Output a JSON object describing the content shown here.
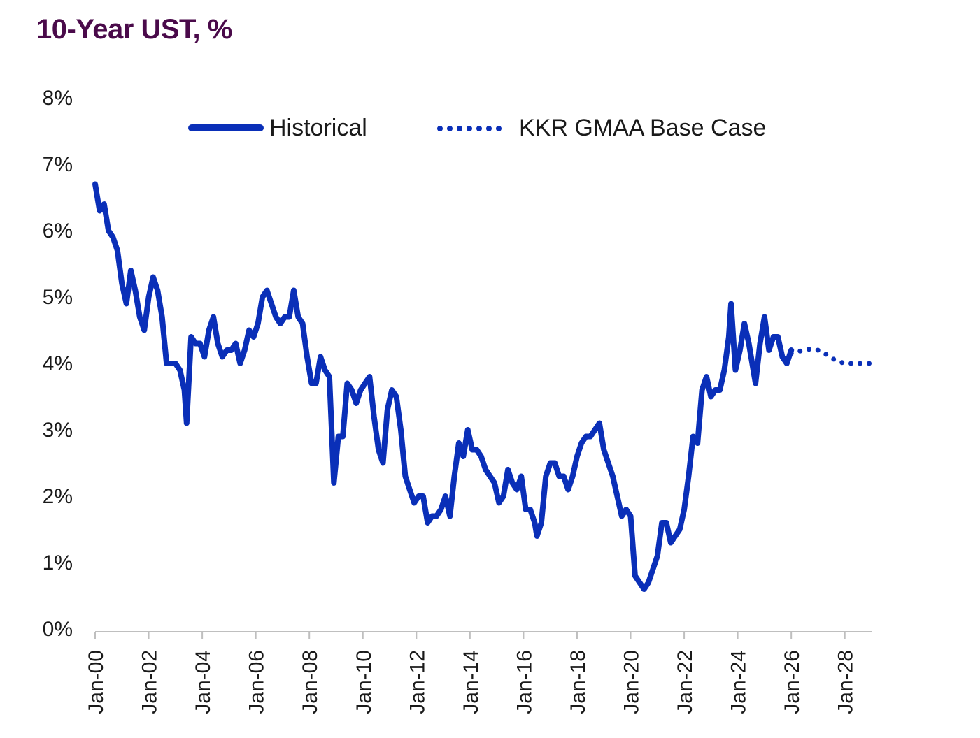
{
  "chart_data": {
    "type": "line",
    "title": "10-Year UST, %",
    "xlabel": "",
    "ylabel": "",
    "ylim": [
      0,
      8
    ],
    "xlim": [
      "2000-01",
      "2029-01"
    ],
    "y_ticks": [
      "0%",
      "1%",
      "2%",
      "3%",
      "4%",
      "5%",
      "6%",
      "7%",
      "8%"
    ],
    "x_ticks": [
      "Jan-00",
      "Jan-02",
      "Jan-04",
      "Jan-06",
      "Jan-08",
      "Jan-10",
      "Jan-12",
      "Jan-14",
      "Jan-16",
      "Jan-18",
      "Jan-20",
      "Jan-22",
      "Jan-24",
      "Jan-26",
      "Jan-28"
    ],
    "grid": false,
    "legend": "top-center",
    "series": [
      {
        "name": "Historical",
        "style": "solid",
        "color": "#0a2fb8",
        "points": [
          [
            "2000-01",
            6.7
          ],
          [
            "2000-03",
            6.3
          ],
          [
            "2000-05",
            6.4
          ],
          [
            "2000-07",
            6.0
          ],
          [
            "2000-09",
            5.9
          ],
          [
            "2000-11",
            5.7
          ],
          [
            "2001-01",
            5.2
          ],
          [
            "2001-03",
            4.9
          ],
          [
            "2001-05",
            5.4
          ],
          [
            "2001-07",
            5.1
          ],
          [
            "2001-09",
            4.7
          ],
          [
            "2001-11",
            4.5
          ],
          [
            "2002-01",
            5.0
          ],
          [
            "2002-03",
            5.3
          ],
          [
            "2002-05",
            5.1
          ],
          [
            "2002-07",
            4.7
          ],
          [
            "2002-09",
            4.0
          ],
          [
            "2002-11",
            4.0
          ],
          [
            "2003-01",
            4.0
          ],
          [
            "2003-03",
            3.9
          ],
          [
            "2003-05",
            3.6
          ],
          [
            "2003-06",
            3.1
          ],
          [
            "2003-08",
            4.4
          ],
          [
            "2003-10",
            4.3
          ],
          [
            "2003-12",
            4.3
          ],
          [
            "2004-02",
            4.1
          ],
          [
            "2004-04",
            4.5
          ],
          [
            "2004-06",
            4.7
          ],
          [
            "2004-08",
            4.3
          ],
          [
            "2004-10",
            4.1
          ],
          [
            "2004-12",
            4.2
          ],
          [
            "2005-02",
            4.2
          ],
          [
            "2005-04",
            4.3
          ],
          [
            "2005-06",
            4.0
          ],
          [
            "2005-08",
            4.2
          ],
          [
            "2005-10",
            4.5
          ],
          [
            "2005-12",
            4.4
          ],
          [
            "2006-02",
            4.6
          ],
          [
            "2006-04",
            5.0
          ],
          [
            "2006-06",
            5.1
          ],
          [
            "2006-08",
            4.9
          ],
          [
            "2006-10",
            4.7
          ],
          [
            "2006-12",
            4.6
          ],
          [
            "2007-02",
            4.7
          ],
          [
            "2007-04",
            4.7
          ],
          [
            "2007-06",
            5.1
          ],
          [
            "2007-08",
            4.7
          ],
          [
            "2007-10",
            4.6
          ],
          [
            "2007-12",
            4.1
          ],
          [
            "2008-02",
            3.7
          ],
          [
            "2008-04",
            3.7
          ],
          [
            "2008-06",
            4.1
          ],
          [
            "2008-08",
            3.9
          ],
          [
            "2008-10",
            3.8
          ],
          [
            "2008-12",
            2.2
          ],
          [
            "2009-02",
            2.9
          ],
          [
            "2009-04",
            2.9
          ],
          [
            "2009-06",
            3.7
          ],
          [
            "2009-08",
            3.6
          ],
          [
            "2009-10",
            3.4
          ],
          [
            "2009-12",
            3.6
          ],
          [
            "2010-02",
            3.7
          ],
          [
            "2010-04",
            3.8
          ],
          [
            "2010-06",
            3.2
          ],
          [
            "2010-08",
            2.7
          ],
          [
            "2010-10",
            2.5
          ],
          [
            "2010-12",
            3.3
          ],
          [
            "2011-02",
            3.6
          ],
          [
            "2011-04",
            3.5
          ],
          [
            "2011-06",
            3.0
          ],
          [
            "2011-08",
            2.3
          ],
          [
            "2011-10",
            2.1
          ],
          [
            "2011-12",
            1.9
          ],
          [
            "2012-02",
            2.0
          ],
          [
            "2012-04",
            2.0
          ],
          [
            "2012-06",
            1.6
          ],
          [
            "2012-08",
            1.7
          ],
          [
            "2012-10",
            1.7
          ],
          [
            "2012-12",
            1.8
          ],
          [
            "2013-02",
            2.0
          ],
          [
            "2013-04",
            1.7
          ],
          [
            "2013-06",
            2.3
          ],
          [
            "2013-08",
            2.8
          ],
          [
            "2013-10",
            2.6
          ],
          [
            "2013-12",
            3.0
          ],
          [
            "2014-02",
            2.7
          ],
          [
            "2014-04",
            2.7
          ],
          [
            "2014-06",
            2.6
          ],
          [
            "2014-08",
            2.4
          ],
          [
            "2014-10",
            2.3
          ],
          [
            "2014-12",
            2.2
          ],
          [
            "2015-02",
            1.9
          ],
          [
            "2015-04",
            2.0
          ],
          [
            "2015-06",
            2.4
          ],
          [
            "2015-08",
            2.2
          ],
          [
            "2015-10",
            2.1
          ],
          [
            "2015-12",
            2.3
          ],
          [
            "2016-02",
            1.8
          ],
          [
            "2016-04",
            1.8
          ],
          [
            "2016-06",
            1.6
          ],
          [
            "2016-07",
            1.4
          ],
          [
            "2016-09",
            1.6
          ],
          [
            "2016-11",
            2.3
          ],
          [
            "2017-01",
            2.5
          ],
          [
            "2017-03",
            2.5
          ],
          [
            "2017-05",
            2.3
          ],
          [
            "2017-07",
            2.3
          ],
          [
            "2017-09",
            2.1
          ],
          [
            "2017-11",
            2.3
          ],
          [
            "2018-01",
            2.6
          ],
          [
            "2018-03",
            2.8
          ],
          [
            "2018-05",
            2.9
          ],
          [
            "2018-07",
            2.9
          ],
          [
            "2018-09",
            3.0
          ],
          [
            "2018-11",
            3.1
          ],
          [
            "2019-01",
            2.7
          ],
          [
            "2019-03",
            2.5
          ],
          [
            "2019-05",
            2.3
          ],
          [
            "2019-07",
            2.0
          ],
          [
            "2019-09",
            1.7
          ],
          [
            "2019-11",
            1.8
          ],
          [
            "2020-01",
            1.7
          ],
          [
            "2020-03",
            0.8
          ],
          [
            "2020-05",
            0.7
          ],
          [
            "2020-07",
            0.6
          ],
          [
            "2020-09",
            0.7
          ],
          [
            "2020-11",
            0.9
          ],
          [
            "2021-01",
            1.1
          ],
          [
            "2021-03",
            1.6
          ],
          [
            "2021-05",
            1.6
          ],
          [
            "2021-07",
            1.3
          ],
          [
            "2021-09",
            1.4
          ],
          [
            "2021-11",
            1.5
          ],
          [
            "2022-01",
            1.8
          ],
          [
            "2022-03",
            2.3
          ],
          [
            "2022-05",
            2.9
          ],
          [
            "2022-07",
            2.8
          ],
          [
            "2022-09",
            3.6
          ],
          [
            "2022-11",
            3.8
          ],
          [
            "2023-01",
            3.5
          ],
          [
            "2023-03",
            3.6
          ],
          [
            "2023-05",
            3.6
          ],
          [
            "2023-07",
            3.9
          ],
          [
            "2023-09",
            4.4
          ],
          [
            "2023-10",
            4.9
          ],
          [
            "2023-12",
            3.9
          ],
          [
            "2024-02",
            4.2
          ],
          [
            "2024-04",
            4.6
          ],
          [
            "2024-06",
            4.3
          ],
          [
            "2024-08",
            3.9
          ],
          [
            "2024-09",
            3.7
          ],
          [
            "2024-11",
            4.3
          ],
          [
            "2025-01",
            4.7
          ],
          [
            "2025-03",
            4.2
          ],
          [
            "2025-05",
            4.4
          ],
          [
            "2025-07",
            4.4
          ],
          [
            "2025-09",
            4.1
          ],
          [
            "2025-11",
            4.0
          ],
          [
            "2026-01",
            4.2
          ]
        ]
      },
      {
        "name": "KKR GMAA Base Case",
        "style": "dotted",
        "color": "#0a2fb8",
        "points": [
          [
            "2026-01",
            4.15
          ],
          [
            "2026-04",
            4.18
          ],
          [
            "2026-07",
            4.2
          ],
          [
            "2026-10",
            4.22
          ],
          [
            "2027-01",
            4.2
          ],
          [
            "2027-04",
            4.15
          ],
          [
            "2027-07",
            4.08
          ],
          [
            "2027-10",
            4.03
          ],
          [
            "2028-01",
            4.0
          ],
          [
            "2028-04",
            4.0
          ],
          [
            "2028-07",
            4.0
          ],
          [
            "2028-10",
            4.0
          ],
          [
            "2029-01",
            4.0
          ]
        ]
      }
    ]
  }
}
